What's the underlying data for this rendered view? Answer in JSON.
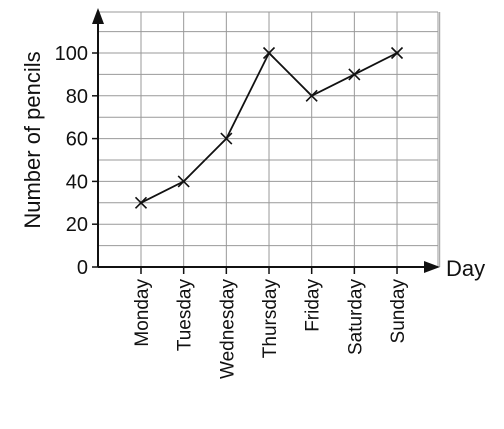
{
  "chart_data": {
    "type": "line",
    "categories": [
      "Monday",
      "Tuesday",
      "Wednesday",
      "Thursday",
      "Friday",
      "Saturday",
      "Sunday"
    ],
    "values": [
      30,
      40,
      60,
      100,
      80,
      90,
      100
    ],
    "title": "",
    "xlabel": "Day",
    "ylabel": "Number of pencils",
    "ylim": [
      0,
      100
    ],
    "yticks": [
      0,
      20,
      40,
      60,
      80,
      100
    ],
    "grid": true,
    "marker": "cross",
    "line_color": "#111111",
    "grid_color": "#999999"
  }
}
